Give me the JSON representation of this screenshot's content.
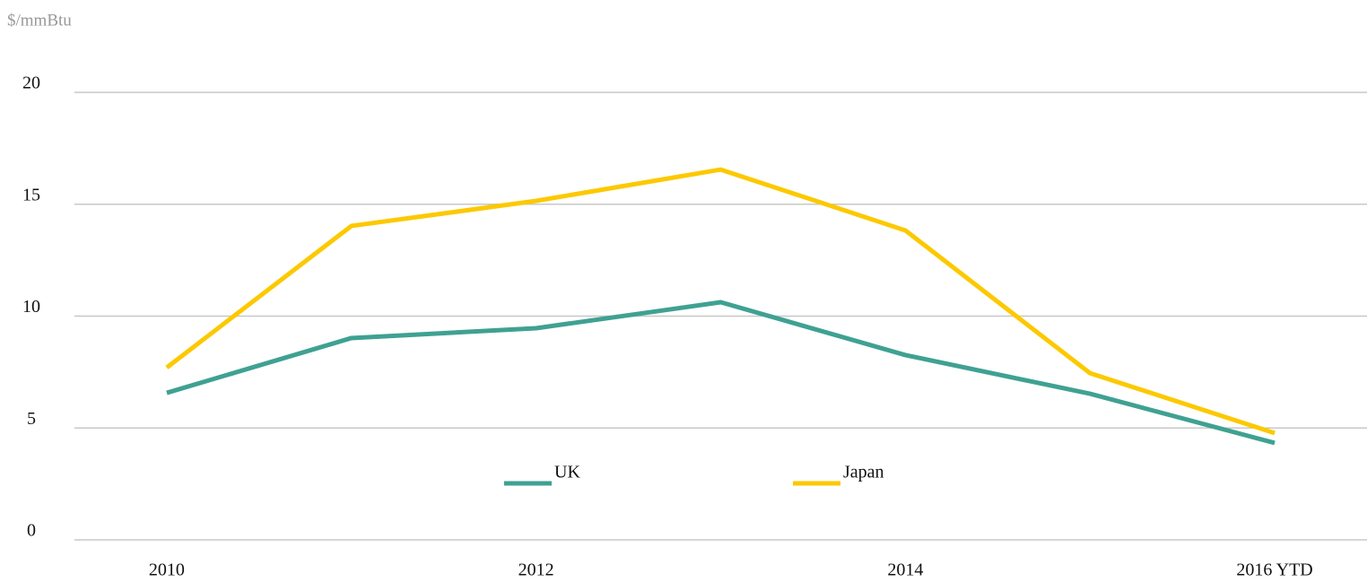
{
  "chart_data": {
    "type": "line",
    "y_axis_label": "$/mmBtu",
    "categories": [
      "2010",
      null,
      "2012",
      null,
      "2014",
      null,
      "2016 YTD"
    ],
    "series": [
      {
        "name": "UK",
        "color": "#3fa192",
        "values": [
          6.57,
          9.02,
          9.46,
          10.62,
          8.26,
          6.53,
          4.33
        ]
      },
      {
        "name": "Japan",
        "color": "#fcc900",
        "values": [
          7.7,
          14.03,
          15.15,
          16.55,
          13.83,
          7.45,
          4.77
        ]
      }
    ],
    "ylim": [
      0,
      20
    ],
    "yticks": [
      0,
      5,
      10,
      15,
      20
    ],
    "grid": true,
    "legend": "bottom"
  }
}
